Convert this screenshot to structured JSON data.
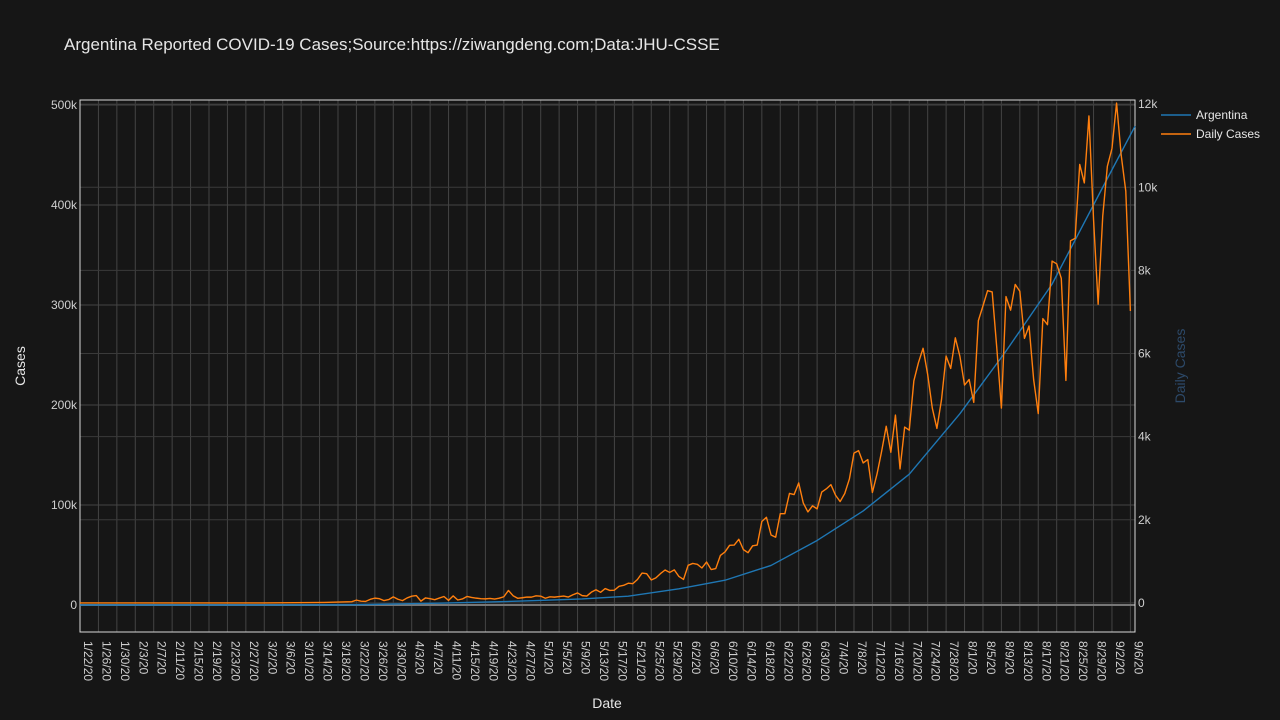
{
  "chart_data": {
    "type": "line",
    "title": "Argentina Reported COVID-19 Cases;Source:https://ziwangdeng.com;Data:JHU-CSSE",
    "xlabel": "Date",
    "ylabel": "Cases",
    "y2label": "Daily Cases",
    "x_start": "2020-01-22",
    "x_end": "2020-09-07",
    "x_tick_labels": [
      "1/22/20",
      "1/26/20",
      "1/30/20",
      "2/3/20",
      "2/7/20",
      "2/11/20",
      "2/15/20",
      "2/19/20",
      "2/23/20",
      "2/27/20",
      "3/2/20",
      "3/6/20",
      "3/10/20",
      "3/14/20",
      "3/18/20",
      "3/22/20",
      "3/26/20",
      "3/30/20",
      "4/3/20",
      "4/7/20",
      "4/11/20",
      "4/15/20",
      "4/19/20",
      "4/23/20",
      "4/27/20",
      "5/1/20",
      "5/5/20",
      "5/9/20",
      "5/13/20",
      "5/17/20",
      "5/21/20",
      "5/25/20",
      "5/29/20",
      "6/2/20",
      "6/6/20",
      "6/10/20",
      "6/14/20",
      "6/18/20",
      "6/22/20",
      "6/26/20",
      "6/30/20",
      "7/4/20",
      "7/8/20",
      "7/12/20",
      "7/16/20",
      "7/20/20",
      "7/24/20",
      "7/28/20",
      "8/1/20",
      "8/5/20",
      "8/9/20",
      "8/13/20",
      "8/17/20",
      "8/21/20",
      "8/25/20",
      "8/29/20",
      "9/2/20",
      "9/6/20"
    ],
    "ylim": [
      -27000,
      505000
    ],
    "y_ticks": [
      0,
      100000,
      200000,
      300000,
      400000,
      500000
    ],
    "y_tick_labels": [
      "0",
      "100k",
      "200k",
      "300k",
      "400k",
      "500k"
    ],
    "y2lim": [
      -700,
      12100
    ],
    "y2_ticks": [
      0,
      2000,
      4000,
      6000,
      8000,
      10000,
      12000
    ],
    "y2_tick_labels": [
      "0",
      "2k",
      "4k",
      "6k",
      "8k",
      "10k",
      "12k"
    ],
    "legend_position": "top-right",
    "series": [
      {
        "name": "Argentina",
        "axis": "y",
        "color": "#1f77b4",
        "points": [
          [
            "2020-01-22",
            0
          ],
          [
            "2020-03-03",
            1
          ],
          [
            "2020-03-20",
            128
          ],
          [
            "2020-03-31",
            1054
          ],
          [
            "2020-04-10",
            1975
          ],
          [
            "2020-04-20",
            3031
          ],
          [
            "2020-04-30",
            4428
          ],
          [
            "2020-05-10",
            6034
          ],
          [
            "2020-05-20",
            8809
          ],
          [
            "2020-05-31",
            16214
          ],
          [
            "2020-06-10",
            24761
          ],
          [
            "2020-06-20",
            39570
          ],
          [
            "2020-06-30",
            64530
          ],
          [
            "2020-07-10",
            94060
          ],
          [
            "2020-07-20",
            130774
          ],
          [
            "2020-07-31",
            191302
          ],
          [
            "2020-08-10",
            253868
          ],
          [
            "2020-08-20",
            320884
          ],
          [
            "2020-08-31",
            417735
          ],
          [
            "2020-09-07",
            478792
          ]
        ]
      },
      {
        "name": "Daily Cases",
        "axis": "y2",
        "color": "#ff7f0e",
        "points": [
          [
            "2020-01-22",
            0
          ],
          [
            "2020-03-02",
            0
          ],
          [
            "2020-03-15",
            11
          ],
          [
            "2020-03-21",
            30
          ],
          [
            "2020-03-22",
            67
          ],
          [
            "2020-03-23",
            41
          ],
          [
            "2020-03-24",
            36
          ],
          [
            "2020-03-25",
            86
          ],
          [
            "2020-03-26",
            115
          ],
          [
            "2020-03-27",
            101
          ],
          [
            "2020-03-28",
            55
          ],
          [
            "2020-03-29",
            79
          ],
          [
            "2020-03-30",
            146
          ],
          [
            "2020-03-31",
            88
          ],
          [
            "2020-04-01",
            55
          ],
          [
            "2020-04-02",
            120
          ],
          [
            "2020-04-03",
            162
          ],
          [
            "2020-04-04",
            176
          ],
          [
            "2020-04-05",
            43
          ],
          [
            "2020-04-06",
            121
          ],
          [
            "2020-04-07",
            101
          ],
          [
            "2020-04-08",
            78
          ],
          [
            "2020-04-09",
            117
          ],
          [
            "2020-04-10",
            154
          ],
          [
            "2020-04-11",
            60
          ],
          [
            "2020-04-12",
            168
          ],
          [
            "2020-04-13",
            70
          ],
          [
            "2020-04-14",
            95
          ],
          [
            "2020-04-15",
            155
          ],
          [
            "2020-04-16",
            132
          ],
          [
            "2020-04-17",
            115
          ],
          [
            "2020-04-18",
            102
          ],
          [
            "2020-04-19",
            97
          ],
          [
            "2020-04-20",
            108
          ],
          [
            "2020-04-21",
            91
          ],
          [
            "2020-04-22",
            114
          ],
          [
            "2020-04-23",
            148
          ],
          [
            "2020-04-24",
            300
          ],
          [
            "2020-04-25",
            173
          ],
          [
            "2020-04-26",
            111
          ],
          [
            "2020-04-27",
            124
          ],
          [
            "2020-04-28",
            140
          ],
          [
            "2020-04-29",
            139
          ],
          [
            "2020-04-30",
            170
          ],
          [
            "2020-05-01",
            162
          ],
          [
            "2020-05-02",
            112
          ],
          [
            "2020-05-03",
            147
          ],
          [
            "2020-05-04",
            139
          ],
          [
            "2020-05-05",
            153
          ],
          [
            "2020-05-06",
            165
          ],
          [
            "2020-05-07",
            141
          ],
          [
            "2020-05-08",
            197
          ],
          [
            "2020-05-09",
            240
          ],
          [
            "2020-05-10",
            175
          ],
          [
            "2020-05-11",
            165
          ],
          [
            "2020-05-12",
            258
          ],
          [
            "2020-05-13",
            316
          ],
          [
            "2020-05-14",
            255
          ],
          [
            "2020-05-15",
            345
          ],
          [
            "2020-05-16",
            300
          ],
          [
            "2020-05-17",
            307
          ],
          [
            "2020-05-18",
            400
          ],
          [
            "2020-05-19",
            422
          ],
          [
            "2020-05-20",
            474
          ],
          [
            "2020-05-21",
            463
          ],
          [
            "2020-05-22",
            563
          ],
          [
            "2020-05-23",
            718
          ],
          [
            "2020-05-24",
            704
          ],
          [
            "2020-05-25",
            552
          ],
          [
            "2020-05-26",
            603
          ],
          [
            "2020-05-27",
            705
          ],
          [
            "2020-05-28",
            792
          ],
          [
            "2020-05-29",
            733
          ],
          [
            "2020-05-30",
            795
          ],
          [
            "2020-05-31",
            636
          ],
          [
            "2020-06-01",
            564
          ],
          [
            "2020-06-02",
            904
          ],
          [
            "2020-06-03",
            949
          ],
          [
            "2020-06-04",
            929
          ],
          [
            "2020-06-05",
            840
          ],
          [
            "2020-06-06",
            983
          ],
          [
            "2020-06-07",
            802
          ],
          [
            "2020-06-08",
            826
          ],
          [
            "2020-06-09",
            1141
          ],
          [
            "2020-06-10",
            1226
          ],
          [
            "2020-06-11",
            1386
          ],
          [
            "2020-06-12",
            1391
          ],
          [
            "2020-06-13",
            1531
          ],
          [
            "2020-06-14",
            1282
          ],
          [
            "2020-06-15",
            1208
          ],
          [
            "2020-06-16",
            1374
          ],
          [
            "2020-06-17",
            1393
          ],
          [
            "2020-06-18",
            1958
          ],
          [
            "2020-06-19",
            2060
          ],
          [
            "2020-06-20",
            1634
          ],
          [
            "2020-06-21",
            1581
          ],
          [
            "2020-06-22",
            2146
          ],
          [
            "2020-06-23",
            2146
          ],
          [
            "2020-06-24",
            2635
          ],
          [
            "2020-06-25",
            2606
          ],
          [
            "2020-06-26",
            2886
          ],
          [
            "2020-06-27",
            2401
          ],
          [
            "2020-06-28",
            2189
          ],
          [
            "2020-06-29",
            2335
          ],
          [
            "2020-06-30",
            2262
          ],
          [
            "2020-07-01",
            2667
          ],
          [
            "2020-07-02",
            2744
          ],
          [
            "2020-07-03",
            2845
          ],
          [
            "2020-07-04",
            2590
          ],
          [
            "2020-07-05",
            2439
          ],
          [
            "2020-07-06",
            2632
          ],
          [
            "2020-07-07",
            2979
          ],
          [
            "2020-07-08",
            3604
          ],
          [
            "2020-07-09",
            3663
          ],
          [
            "2020-07-10",
            3367
          ],
          [
            "2020-07-11",
            3449
          ],
          [
            "2020-07-12",
            2657
          ],
          [
            "2020-07-13",
            3099
          ],
          [
            "2020-07-14",
            3645
          ],
          [
            "2020-07-15",
            4250
          ],
          [
            "2020-07-16",
            3624
          ],
          [
            "2020-07-17",
            4518
          ],
          [
            "2020-07-18",
            3223
          ],
          [
            "2020-07-19",
            4231
          ],
          [
            "2020-07-20",
            4155
          ],
          [
            "2020-07-21",
            5344
          ],
          [
            "2020-07-22",
            5782
          ],
          [
            "2020-07-23",
            6127
          ],
          [
            "2020-07-24",
            5493
          ],
          [
            "2020-07-25",
            4688
          ],
          [
            "2020-07-26",
            4198
          ],
          [
            "2020-07-27",
            4890
          ],
          [
            "2020-07-28",
            5939
          ],
          [
            "2020-07-29",
            5641
          ],
          [
            "2020-07-30",
            6377
          ],
          [
            "2020-07-31",
            5929
          ],
          [
            "2020-08-01",
            5241
          ],
          [
            "2020-08-02",
            5376
          ],
          [
            "2020-08-03",
            4824
          ],
          [
            "2020-08-04",
            6792
          ],
          [
            "2020-08-05",
            7147
          ],
          [
            "2020-08-06",
            7513
          ],
          [
            "2020-08-07",
            7482
          ],
          [
            "2020-08-08",
            6134
          ],
          [
            "2020-08-09",
            4688
          ],
          [
            "2020-08-10",
            7369
          ],
          [
            "2020-08-11",
            7043
          ],
          [
            "2020-08-12",
            7663
          ],
          [
            "2020-08-13",
            7498
          ],
          [
            "2020-08-14",
            6365
          ],
          [
            "2020-08-15",
            6663
          ],
          [
            "2020-08-16",
            5372
          ],
          [
            "2020-08-17",
            4556
          ],
          [
            "2020-08-18",
            6840
          ],
          [
            "2020-08-19",
            6693
          ],
          [
            "2020-08-20",
            8225
          ],
          [
            "2020-08-21",
            8159
          ],
          [
            "2020-08-22",
            7808
          ],
          [
            "2020-08-23",
            5352
          ],
          [
            "2020-08-24",
            8713
          ],
          [
            "2020-08-25",
            8771
          ],
          [
            "2020-08-26",
            10550
          ],
          [
            "2020-08-27",
            10104
          ],
          [
            "2020-08-28",
            11717
          ],
          [
            "2020-08-29",
            9230
          ],
          [
            "2020-08-30",
            7187
          ],
          [
            "2020-08-31",
            9309
          ],
          [
            "2020-09-01",
            10504
          ],
          [
            "2020-09-02",
            10933
          ],
          [
            "2020-09-03",
            12026
          ],
          [
            "2020-09-04",
            10776
          ],
          [
            "2020-09-05",
            9908
          ],
          [
            "2020-09-06",
            7024
          ]
        ]
      }
    ]
  }
}
